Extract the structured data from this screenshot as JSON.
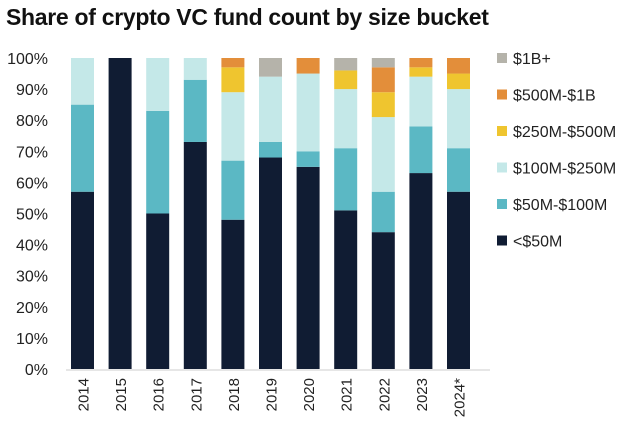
{
  "chart_data": {
    "type": "bar",
    "stacked": true,
    "title": "Share of crypto VC fund count by size bucket",
    "xlabel": "",
    "ylabel": "",
    "ylim": [
      0,
      100
    ],
    "yticks": [
      "0%",
      "10%",
      "20%",
      "30%",
      "40%",
      "50%",
      "60%",
      "70%",
      "80%",
      "90%",
      "100%"
    ],
    "grid": false,
    "legend_placement": "right",
    "categories": [
      "2014",
      "2015",
      "2016",
      "2017",
      "2018",
      "2019",
      "2020",
      "2021",
      "2022",
      "2023",
      "2024*"
    ],
    "series": [
      {
        "name": "<$50M",
        "color": "#101c33",
        "values": [
          57,
          100,
          50,
          73,
          48,
          68,
          65,
          51,
          44,
          63,
          57
        ]
      },
      {
        "name": "$50M-$100M",
        "color": "#5bb8c4",
        "values": [
          28,
          0,
          33,
          20,
          19,
          5,
          5,
          20,
          13,
          15,
          14
        ]
      },
      {
        "name": "$100M-$250M",
        "color": "#c4e8e8",
        "values": [
          15,
          0,
          17,
          7,
          22,
          21,
          25,
          19,
          24,
          16,
          19
        ]
      },
      {
        "name": "$250M-$500M",
        "color": "#efc52f",
        "values": [
          0,
          0,
          0,
          0,
          8,
          0,
          0,
          6,
          8,
          3,
          5
        ]
      },
      {
        "name": "$500M-$1B",
        "color": "#e38e3a",
        "values": [
          0,
          0,
          0,
          0,
          3,
          0,
          5,
          0,
          8,
          3,
          5
        ]
      },
      {
        "name": "$1B+",
        "color": "#b5b3aa",
        "values": [
          0,
          0,
          0,
          0,
          0,
          6,
          0,
          4,
          3,
          0,
          0
        ]
      }
    ]
  }
}
